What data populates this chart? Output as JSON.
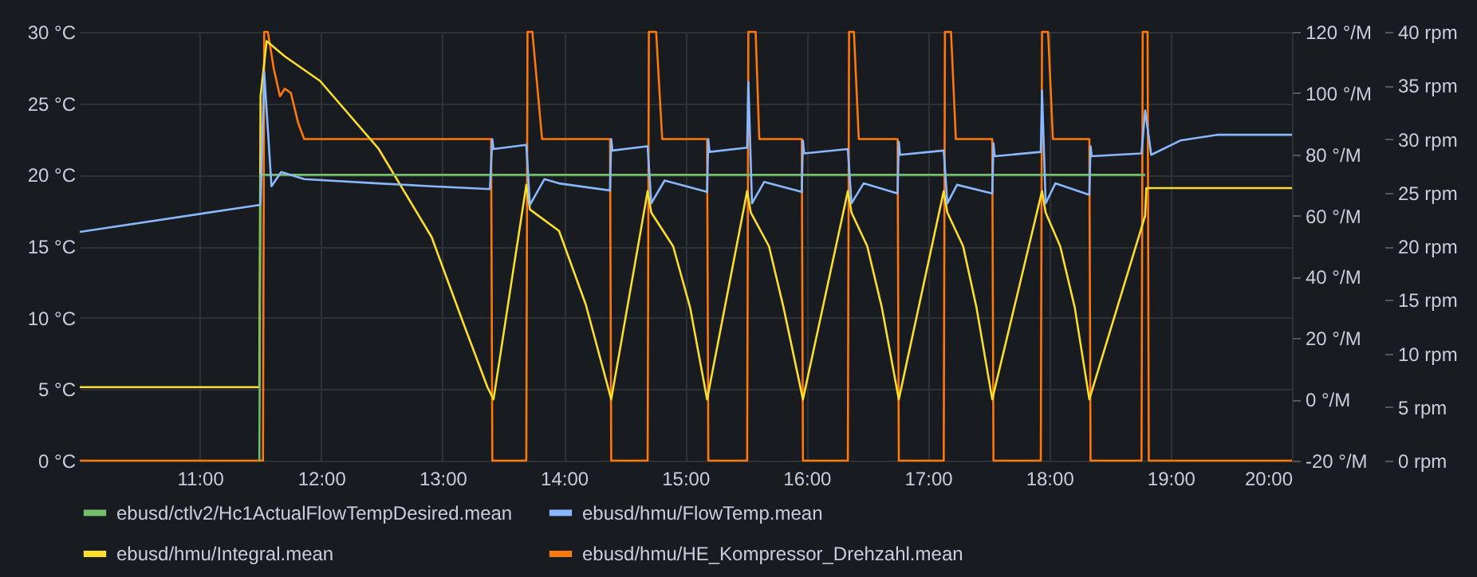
{
  "chart_data": {
    "type": "line",
    "legend": "bottom",
    "grid": true,
    "xlim": [
      10.01,
      20.0
    ],
    "xticks": [
      {
        "value": 11,
        "label": "11:00"
      },
      {
        "value": 12,
        "label": "12:00"
      },
      {
        "value": 13,
        "label": "13:00"
      },
      {
        "value": 14,
        "label": "14:00"
      },
      {
        "value": 15,
        "label": "15:00"
      },
      {
        "value": 16,
        "label": "16:00"
      },
      {
        "value": 17,
        "label": "17:00"
      },
      {
        "value": 18,
        "label": "18:00"
      },
      {
        "value": 19,
        "label": "19:00"
      },
      {
        "value": 20,
        "label": "20:00"
      }
    ],
    "ylim": [
      0,
      30
    ],
    "yticks": [
      {
        "value": 0,
        "label": "0 °C"
      },
      {
        "value": 5,
        "label": "5 °C"
      },
      {
        "value": 10,
        "label": "10 °C"
      },
      {
        "value": 15,
        "label": "15 °C"
      },
      {
        "value": 20,
        "label": "20 °C"
      },
      {
        "value": 25,
        "label": "25 °C"
      },
      {
        "value": 30,
        "label": "30 °C"
      }
    ],
    "y2lim": [
      -20,
      120
    ],
    "y2ticks": [
      {
        "value": -20,
        "label": "-20 °/M"
      },
      {
        "value": 0,
        "label": "0 °/M"
      },
      {
        "value": 20,
        "label": "20 °/M"
      },
      {
        "value": 40,
        "label": "40 °/M"
      },
      {
        "value": 60,
        "label": "60 °/M"
      },
      {
        "value": 80,
        "label": "80 °/M"
      },
      {
        "value": 100,
        "label": "100 °/M"
      },
      {
        "value": 120,
        "label": "120 °/M"
      }
    ],
    "y3lim": [
      0,
      40
    ],
    "y3ticks": [
      {
        "value": 0,
        "label": "0 rpm"
      },
      {
        "value": 5,
        "label": "5 rpm"
      },
      {
        "value": 10,
        "label": "10 rpm"
      },
      {
        "value": 15,
        "label": "15 rpm"
      },
      {
        "value": 20,
        "label": "20 rpm"
      },
      {
        "value": 25,
        "label": "25 rpm"
      },
      {
        "value": 30,
        "label": "30 rpm"
      },
      {
        "value": 35,
        "label": "35 rpm"
      },
      {
        "value": 40,
        "label": "40 rpm"
      }
    ],
    "series": [
      {
        "name": "ebusd/ctlv2/Hc1ActualFlowTempDesired.mean",
        "color": "#73bf69",
        "axis": "y",
        "x": [
          11.49,
          11.5,
          18.79
        ],
        "values": [
          0,
          20,
          20
        ]
      },
      {
        "name": "ebusd/hmu/FlowTemp.mean",
        "color": "#8ab8ff",
        "axis": "y",
        "x": [
          10.01,
          11.5,
          11.53,
          11.59,
          11.67,
          11.86,
          12.47,
          12.91,
          13.39,
          13.41,
          13.42,
          13.69,
          13.72,
          13.84,
          13.96,
          14.38,
          14.39,
          14.4,
          14.69,
          14.72,
          14.83,
          15.18,
          15.19,
          15.2,
          15.51,
          15.52,
          15.55,
          15.65,
          15.96,
          15.97,
          15.98,
          16.34,
          16.37,
          16.47,
          16.75,
          16.76,
          16.77,
          17.13,
          17.16,
          17.24,
          17.53,
          17.54,
          17.55,
          17.93,
          17.94,
          17.97,
          18.05,
          18.33,
          18.34,
          18.35,
          18.76,
          18.79,
          18.84,
          19.08,
          19.39,
          20.0
        ],
        "values": [
          16.0,
          17.9,
          27.2,
          19.2,
          20.2,
          19.7,
          19.4,
          19.2,
          19.0,
          22.5,
          21.8,
          22.1,
          17.9,
          19.7,
          19.4,
          18.9,
          22.5,
          21.7,
          22.0,
          18.0,
          19.6,
          18.8,
          22.5,
          21.6,
          21.9,
          26.5,
          18.0,
          19.5,
          18.8,
          22.4,
          21.5,
          21.8,
          18.0,
          19.4,
          18.7,
          22.3,
          21.4,
          21.7,
          18.0,
          19.3,
          18.7,
          22.2,
          21.3,
          21.6,
          25.9,
          18.0,
          19.4,
          18.6,
          22.0,
          21.3,
          21.5,
          24.5,
          21.4,
          22.4,
          22.8,
          22.8
        ]
      },
      {
        "name": "ebusd/hmu/Integral.mean",
        "color": "#fade2a",
        "axis": "y2",
        "x": [
          10.01,
          11.49,
          11.5,
          11.55,
          11.7,
          11.99,
          12.47,
          12.91,
          13.17,
          13.37,
          13.42,
          13.69,
          13.72,
          13.96,
          14.18,
          14.39,
          14.69,
          14.72,
          14.9,
          15.04,
          15.18,
          15.51,
          15.54,
          15.69,
          15.81,
          15.97,
          16.34,
          16.37,
          16.5,
          16.62,
          16.76,
          17.13,
          17.16,
          17.29,
          17.4,
          17.53,
          17.94,
          17.97,
          18.09,
          18.21,
          18.33,
          18.79,
          18.8,
          20.0
        ],
        "values": [
          4,
          4,
          99,
          117,
          112,
          104,
          82,
          53,
          25,
          4,
          0,
          70,
          62,
          55,
          31,
          0,
          68,
          61,
          50,
          30,
          0,
          68,
          61,
          50,
          30,
          0,
          68,
          61,
          50,
          30,
          0,
          68,
          61,
          50,
          30,
          0,
          68,
          61,
          50,
          30,
          0,
          60,
          69,
          69
        ]
      },
      {
        "name": "ebusd/hmu/HE_Kompressor_Drehzahl.mean",
        "color": "#ff780a",
        "axis": "y3",
        "x": [
          10.01,
          11.52,
          11.53,
          11.56,
          11.61,
          11.66,
          11.7,
          11.75,
          11.81,
          11.86,
          13.4,
          13.41,
          13.69,
          13.7,
          13.74,
          13.82,
          14.38,
          14.39,
          14.69,
          14.7,
          14.76,
          14.81,
          15.18,
          15.19,
          15.51,
          15.52,
          15.58,
          15.61,
          15.96,
          15.97,
          16.34,
          16.35,
          16.39,
          16.43,
          16.75,
          16.76,
          17.13,
          17.14,
          17.19,
          17.23,
          17.53,
          17.54,
          17.93,
          17.94,
          17.99,
          18.03,
          18.33,
          18.34,
          18.76,
          18.77,
          18.81,
          18.82,
          20.0
        ],
        "values": [
          0,
          0,
          40,
          40,
          36.5,
          34,
          34.7,
          34.3,
          31.5,
          30,
          30,
          0,
          0,
          40,
          40,
          30,
          30,
          0,
          0,
          40,
          40,
          30,
          30,
          0,
          0,
          40,
          40,
          30,
          30,
          0,
          0,
          40,
          40,
          30,
          30,
          0,
          0,
          40,
          40,
          30,
          30,
          0,
          0,
          40,
          40,
          30,
          30,
          0,
          0,
          40,
          40,
          0,
          0
        ]
      }
    ]
  }
}
